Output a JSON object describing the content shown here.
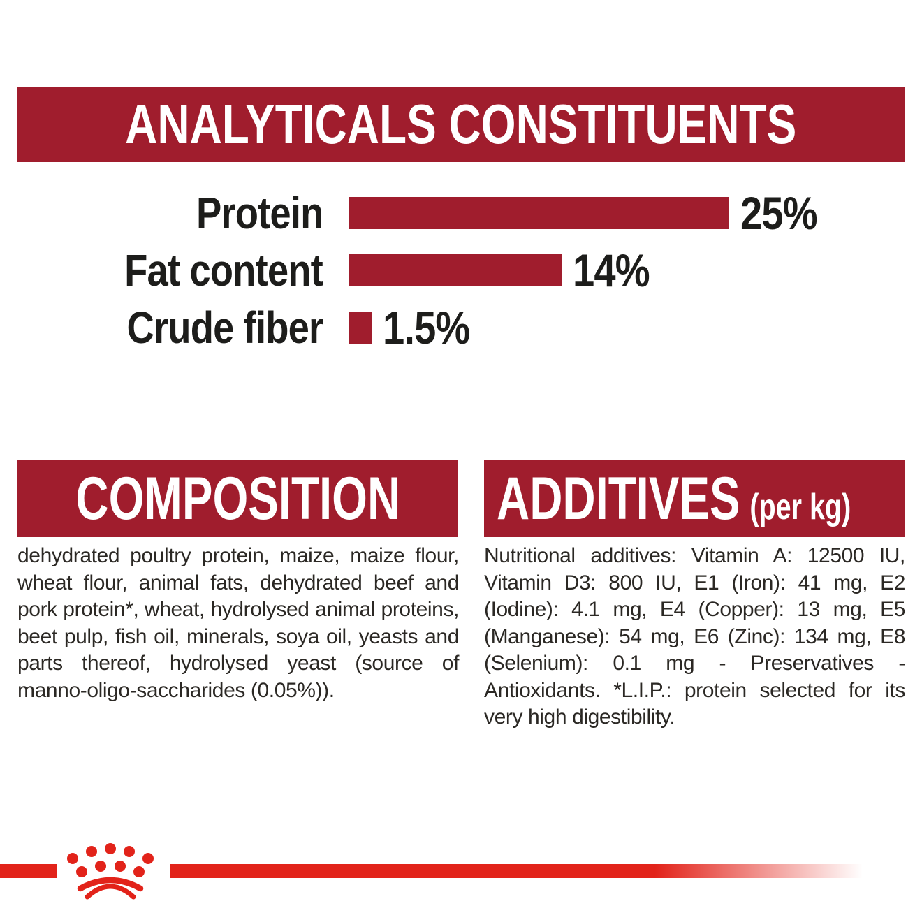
{
  "colors": {
    "dark_red": "#A01D2D",
    "bright_red": "#E2231A",
    "text_dark": "#1D1D1B",
    "body_text": "#2B2824",
    "background": "#FFFFFF"
  },
  "sections": {
    "analyticals": {
      "title": "ANALYTICALS CONSTITUENTS"
    },
    "composition": {
      "title": "COMPOSITION",
      "body": "dehydrated poultry protein, maize, maize flour, wheat flour, animal fats, dehydrated beef and pork protein*, wheat, hydrolysed animal proteins, beet pulp, fish oil, minerals, soya oil, yeasts and parts thereof, hydrolysed yeast (source of manno-oligo-saccharides (0.05%))."
    },
    "additives": {
      "title": "ADDITIVES",
      "title_suffix": "(per kg)",
      "body": "Nutritional additives: Vitamin A: 12500 IU, Vitamin D3: 800 IU, E1 (Iron): 41 mg, E2 (Iodine): 4.1 mg, E4 (Copper): 13 mg, E5 (Manganese): 54 mg, E6 (Zinc): 134 mg, E8 (Selenium): 0.1 mg - Preservatives - Antioxidants. *L.I.P.: protein selected for its very high digestibility."
    }
  },
  "chart_data": {
    "type": "bar",
    "orientation": "horizontal",
    "title": "ANALYTICALS CONSTITUENTS",
    "categories": [
      "Protein",
      "Fat content",
      "Crude fiber"
    ],
    "values": [
      25,
      14,
      1.5
    ],
    "value_labels": [
      "25%",
      "14%",
      "1.5%"
    ],
    "unit": "%",
    "xlim": [
      0,
      25
    ],
    "bar_color": "#A01D2D",
    "label_color": "#1D1D1B",
    "grid": false,
    "legend": false
  },
  "footer": {
    "brand_mark": "royal-canin-crown-icon",
    "line_color": "#E2231A"
  }
}
